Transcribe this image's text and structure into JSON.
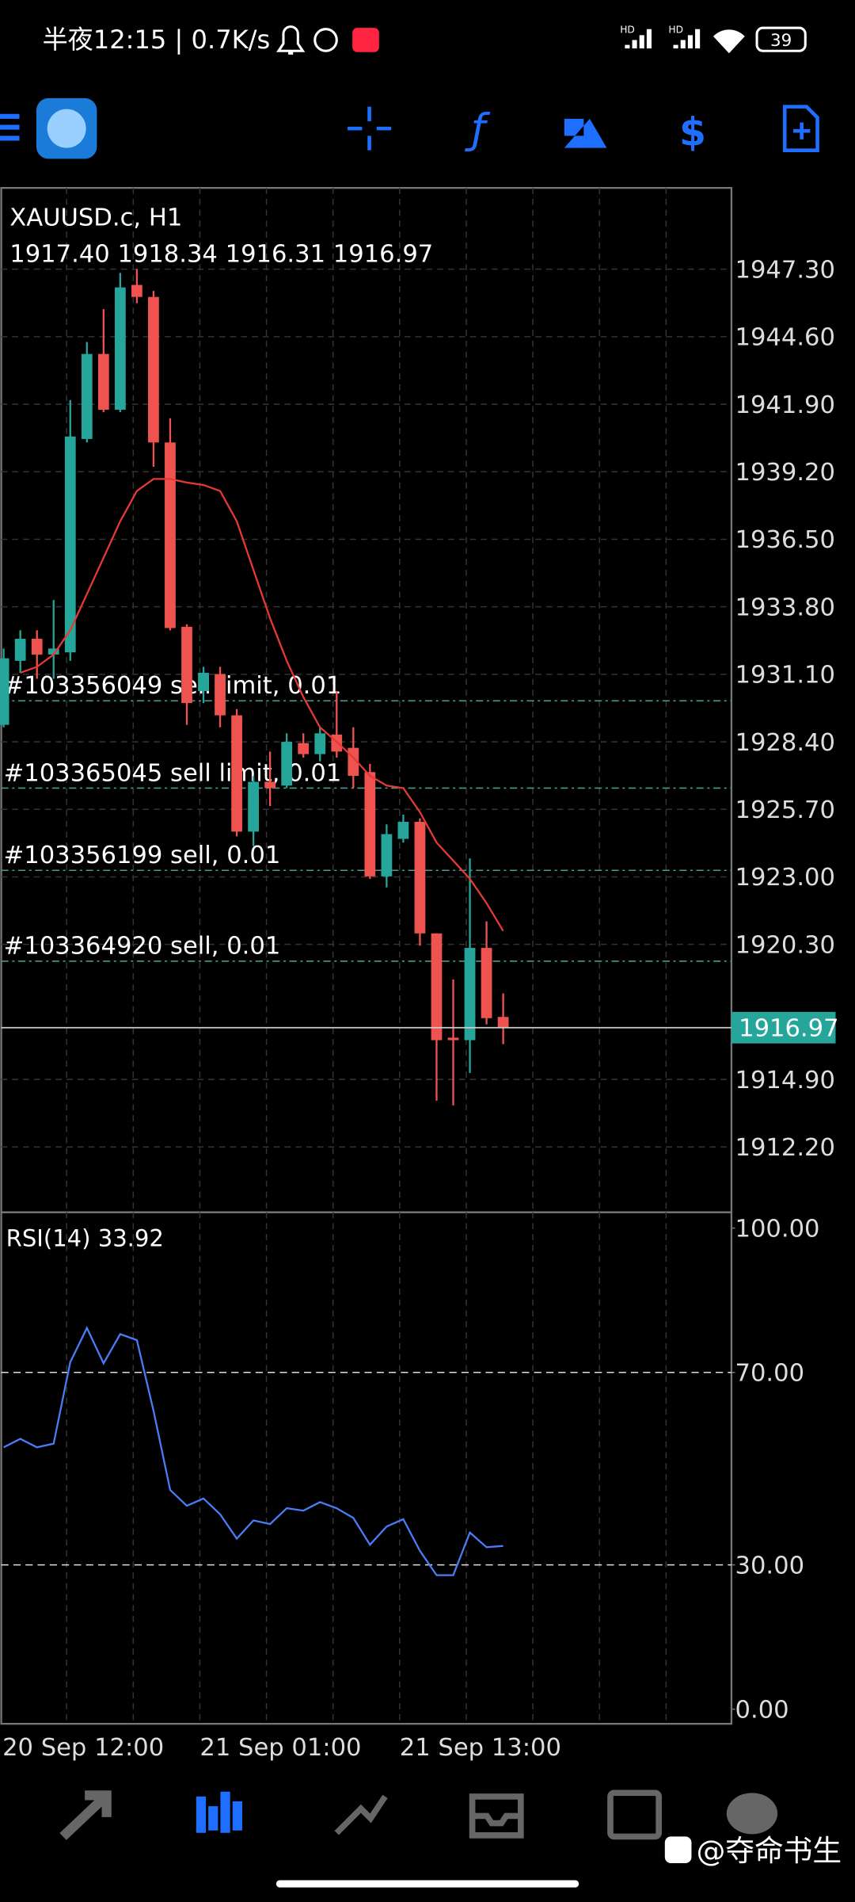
{
  "status_bar": {
    "time": "半夜12:15 | 0.7K/s",
    "hd": "HD",
    "battery": "39"
  },
  "chart_data": [
    {
      "type": "candlestick",
      "title": "XAUUSD.c, H1",
      "ohlc_label": "1917.40 1918.34 1916.31 1916.97",
      "up_color": "#26a69a",
      "down_color": "#ef5350",
      "open": [
        1929.08,
        1931.64,
        1932.52,
        1931.89,
        1931.98,
        1940.51,
        1943.91,
        1941.68,
        1946.67,
        1946.19,
        1940.37,
        1933.0,
        1930.43,
        1931.11,
        1929.46,
        1924.81,
        1926.8,
        1926.65,
        1928.35,
        1927.91,
        1928.69,
        1928.16,
        1927.19,
        1923.02,
        1924.52,
        1925.2,
        1920.74,
        1916.57,
        1916.47,
        1920.16,
        1917.4
      ],
      "high": [
        1932.13,
        1932.86,
        1932.86,
        1934.07,
        1942.07,
        1944.39,
        1945.7,
        1947.15,
        1947.3,
        1946.43,
        1941.34,
        1933.1,
        1931.4,
        1931.4,
        1929.71,
        1927.04,
        1928.01,
        1928.74,
        1928.74,
        1928.98,
        1930.43,
        1928.98,
        1927.52,
        1925.1,
        1925.49,
        1925.34,
        1920.74,
        1918.9,
        1923.74,
        1921.22,
        1918.34
      ],
      "low": [
        1928.98,
        1931.16,
        1930.92,
        1930.92,
        1931.64,
        1940.37,
        1941.58,
        1941.58,
        1945.94,
        1939.4,
        1932.86,
        1929.08,
        1929.95,
        1928.98,
        1924.62,
        1924.23,
        1925.83,
        1926.55,
        1927.77,
        1927.62,
        1927.77,
        1926.55,
        1922.92,
        1922.58,
        1924.37,
        1920.25,
        1914.05,
        1913.86,
        1915.16,
        1917.1,
        1916.31
      ],
      "close": [
        1931.74,
        1932.52,
        1931.89,
        1932.13,
        1940.61,
        1943.91,
        1941.68,
        1946.57,
        1946.19,
        1940.37,
        1932.95,
        1929.95,
        1931.16,
        1929.46,
        1924.81,
        1926.8,
        1926.55,
        1928.4,
        1927.91,
        1928.74,
        1928.01,
        1927.04,
        1923.02,
        1924.71,
        1925.2,
        1920.74,
        1916.47,
        1916.47,
        1920.16,
        1917.35,
        1916.97
      ],
      "ma": {
        "color": "#e53935",
        "values": [
          null,
          1931.16,
          1931.4,
          1931.89,
          1932.86,
          1934.31,
          1935.76,
          1937.22,
          1938.43,
          1938.91,
          1938.91,
          1938.77,
          1938.67,
          1938.43,
          1937.22,
          1935.28,
          1933.34,
          1931.64,
          1930.19,
          1928.98,
          1928.4,
          1927.77,
          1927.04,
          1926.65,
          1926.55,
          1925.59,
          1924.37,
          1923.65,
          1922.92,
          1921.95,
          1920.84
        ]
      },
      "orders": [
        {
          "label": "#103356049 sell limit, 0.01",
          "value": 1930.04
        },
        {
          "label": "#103365045 sell limit, 0.01",
          "value": 1926.55
        },
        {
          "label": "#103356199 sell, 0.01",
          "value": 1923.26
        },
        {
          "label": "#103364920 sell, 0.01",
          "value": 1919.63
        }
      ],
      "last_price": 1916.97,
      "ylim": [
        1909.59,
        1950.55
      ],
      "yticks": [
        {
          "value": 1947.3,
          "label": "1947.30"
        },
        {
          "value": 1944.6,
          "label": "1944.60"
        },
        {
          "value": 1941.9,
          "label": "1941.90"
        },
        {
          "value": 1939.2,
          "label": "1939.20"
        },
        {
          "value": 1936.5,
          "label": "1936.50"
        },
        {
          "value": 1933.8,
          "label": "1933.80"
        },
        {
          "value": 1931.1,
          "label": "1931.10"
        },
        {
          "value": 1928.4,
          "label": "1928.40"
        },
        {
          "value": 1925.7,
          "label": "1925.70"
        },
        {
          "value": 1923.0,
          "label": "1923.00"
        },
        {
          "value": 1920.3,
          "label": "1920.30"
        },
        {
          "value": 1914.9,
          "label": "1914.90"
        },
        {
          "value": 1912.2,
          "label": "1912.20"
        }
      ]
    },
    {
      "type": "line",
      "title": "RSI(14) 33.92",
      "series": [
        {
          "color": "#4a7cf5",
          "values": [
            54.43,
            56.2,
            54.43,
            55.19,
            72.15,
            79.24,
            71.9,
            77.97,
            76.71,
            62.03,
            45.57,
            42.28,
            43.8,
            40.51,
            35.44,
            39.24,
            38.48,
            41.77,
            41.27,
            43.04,
            41.77,
            39.75,
            34.18,
            37.97,
            39.49,
            32.91,
            27.85,
            27.85,
            36.71,
            33.67,
            33.92
          ]
        }
      ],
      "levels": [
        70,
        30
      ],
      "ylim": [
        -3.04,
        103.3
      ],
      "yticks": [
        {
          "value": 100,
          "label": "100.00"
        },
        {
          "value": 70,
          "label": "70.00"
        },
        {
          "value": 30,
          "label": "30.00"
        },
        {
          "value": 0,
          "label": "0.00"
        }
      ],
      "x_labels": [
        "20 Sep 12:00",
        "21 Sep 01:00",
        "21 Sep 13:00"
      ]
    }
  ],
  "watermark": "@夺命书生"
}
